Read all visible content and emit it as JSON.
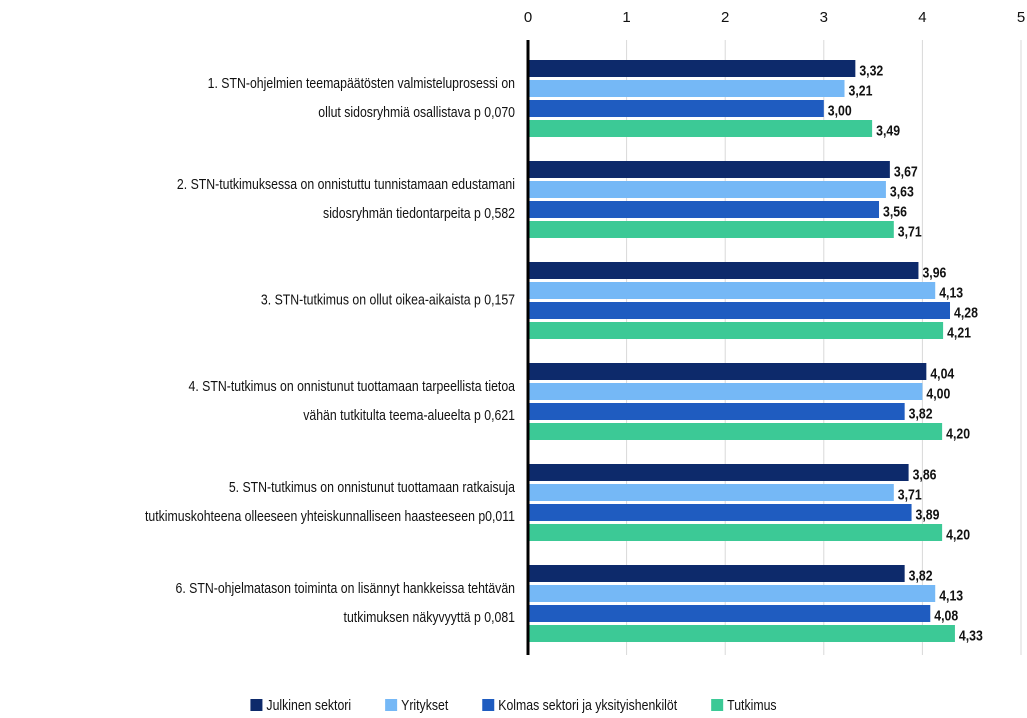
{
  "chart_data": {
    "type": "hbar",
    "categories": [
      [
        "1. STN-ohjelmien teemapäätösten valmisteluprosessi on",
        "ollut sidosryhmiä osallistava p 0,070"
      ],
      [
        "2. STN-tutkimuksessa on onnistuttu tunnistamaan edustamani",
        "sidosryhmän tiedontarpeita p 0,582"
      ],
      [
        "3. STN-tutkimus on ollut oikea-aikaista p 0,157"
      ],
      [
        "4. STN-tutkimus on onnistunut tuottamaan tarpeellista tietoa",
        "vähän tutkitulta teema-alueelta p 0,621"
      ],
      [
        "5. STN-tutkimus on onnistunut tuottamaan ratkaisuja",
        "tutkimuskohteena olleeseen yhteiskunnalliseen haasteeseen p0,011"
      ],
      [
        "6. STN-ohjelmatason toiminta on lisännyt hankkeissa tehtävän",
        "tutkimuksen näkyvyyttä p 0,081"
      ]
    ],
    "series": [
      {
        "name": "Julkinen sektori",
        "color": "#0d2a6b",
        "values": [
          3.32,
          3.67,
          3.96,
          4.04,
          3.86,
          3.82
        ],
        "value_labels": [
          "3,32",
          "3,67",
          "3,96",
          "4,04",
          "3,86",
          "3,82"
        ]
      },
      {
        "name": "Yritykset",
        "color": "#75b8f6",
        "values": [
          3.21,
          3.63,
          4.13,
          4.0,
          3.71,
          4.13
        ],
        "value_labels": [
          "3,21",
          "3,63",
          "4,13",
          "4,00",
          "3,71",
          "4,13"
        ]
      },
      {
        "name": "Kolmas sektori ja yksityishenkilöt",
        "color": "#1f5cc0",
        "values": [
          3.0,
          3.56,
          4.28,
          3.82,
          3.89,
          4.08
        ],
        "value_labels": [
          "3,00",
          "3,56",
          "4,28",
          "3,82",
          "3,89",
          "4,08"
        ]
      },
      {
        "name": "Tutkimus",
        "color": "#3cc996",
        "values": [
          3.49,
          3.71,
          4.21,
          4.2,
          4.2,
          4.33
        ],
        "value_labels": [
          "3,49",
          "3,71",
          "4,21",
          "4,20",
          "4,20",
          "4,33"
        ]
      }
    ],
    "xlim": [
      0,
      5
    ],
    "xticks": [
      0,
      1,
      2,
      3,
      4,
      5
    ],
    "grid": true,
    "legend": "bottom"
  }
}
